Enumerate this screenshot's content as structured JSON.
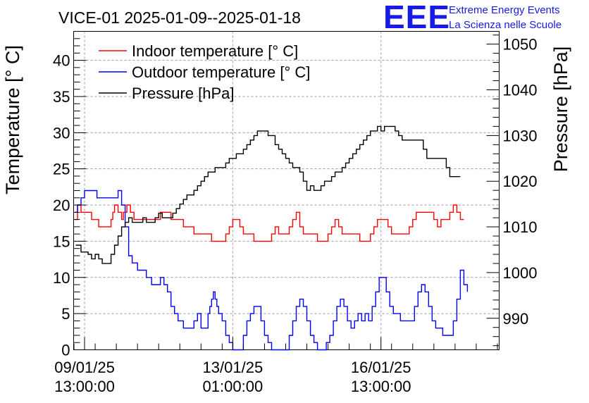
{
  "chart_data": {
    "type": "line",
    "title": "VICE-01 2025-01-09--2025-01-18",
    "ylabel_left": "Temperature [° C]",
    "ylabel_right": "Pressure [hPa]",
    "ylim_left": [
      0,
      44
    ],
    "ylim_right": [
      983.1,
      1052.8
    ],
    "x_range_hours": [
      -6.2,
      235
    ],
    "x_ticks": [
      {
        "hours": 0,
        "date": "09/01/25",
        "time": "13:00:00"
      },
      {
        "hours": 84,
        "date": "13/01/25",
        "time": "01:00:00"
      },
      {
        "hours": 168,
        "date": "16/01/25",
        "time": "13:00:00"
      }
    ],
    "y_ticks_left": [
      0,
      5,
      10,
      15,
      20,
      25,
      30,
      35,
      40
    ],
    "y_ticks_right": [
      990,
      1000,
      1010,
      1020,
      1030,
      1040,
      1050
    ],
    "legend": [
      {
        "label": "Indoor temperature [° C]",
        "color": "#ff0000"
      },
      {
        "label": "Outdoor temperature [° C]",
        "color": "#0000ff"
      },
      {
        "label": "Pressure [hPa]",
        "color": "#000000"
      }
    ],
    "series": [
      {
        "name": "Indoor temperature [° C]",
        "axis": "left",
        "color": "#ff0000",
        "points": [
          [
            -5.5,
            18
          ],
          [
            -4,
            20
          ],
          [
            -2,
            19
          ],
          [
            2,
            19
          ],
          [
            4,
            18
          ],
          [
            7,
            18
          ],
          [
            8,
            17
          ],
          [
            14,
            17
          ],
          [
            15,
            18
          ],
          [
            16,
            19
          ],
          [
            17,
            20
          ],
          [
            19,
            19
          ],
          [
            21,
            18
          ],
          [
            22,
            19
          ],
          [
            24,
            20
          ],
          [
            26,
            19
          ],
          [
            28,
            18
          ],
          [
            42,
            18
          ],
          [
            43,
            19
          ],
          [
            47,
            19
          ],
          [
            49,
            18
          ],
          [
            54,
            18
          ],
          [
            56,
            17
          ],
          [
            60,
            17
          ],
          [
            62,
            16
          ],
          [
            70,
            16
          ],
          [
            72,
            15
          ],
          [
            78,
            15
          ],
          [
            80,
            16
          ],
          [
            82,
            17
          ],
          [
            84,
            18
          ],
          [
            88,
            17
          ],
          [
            90,
            16
          ],
          [
            94,
            16
          ],
          [
            96,
            15
          ],
          [
            104,
            15
          ],
          [
            106,
            16
          ],
          [
            108,
            17
          ],
          [
            110,
            16
          ],
          [
            114,
            16
          ],
          [
            116,
            17
          ],
          [
            118,
            18
          ],
          [
            120,
            19
          ],
          [
            122,
            17
          ],
          [
            124,
            16
          ],
          [
            130,
            16
          ],
          [
            132,
            15
          ],
          [
            136,
            15
          ],
          [
            138,
            16
          ],
          [
            140,
            17
          ],
          [
            142,
            18
          ],
          [
            144,
            17
          ],
          [
            146,
            16
          ],
          [
            154,
            16
          ],
          [
            156,
            15
          ],
          [
            160,
            15
          ],
          [
            162,
            16
          ],
          [
            164,
            17
          ],
          [
            166,
            18
          ],
          [
            170,
            18
          ],
          [
            172,
            17
          ],
          [
            174,
            16
          ],
          [
            182,
            16
          ],
          [
            184,
            17
          ],
          [
            186,
            18
          ],
          [
            188,
            19
          ],
          [
            196,
            19
          ],
          [
            198,
            18
          ],
          [
            200,
            17
          ],
          [
            202,
            18
          ],
          [
            205,
            18
          ],
          [
            207,
            19
          ],
          [
            209,
            20
          ],
          [
            211,
            19
          ],
          [
            213,
            18
          ],
          [
            215,
            18
          ]
        ]
      },
      {
        "name": "Outdoor temperature [° C]",
        "axis": "left",
        "color": "#0000ff",
        "points": [
          [
            -5.5,
            19
          ],
          [
            -4,
            20
          ],
          [
            -2,
            21
          ],
          [
            0,
            22
          ],
          [
            5,
            22
          ],
          [
            7,
            21
          ],
          [
            17,
            21
          ],
          [
            19,
            22
          ],
          [
            21,
            20
          ],
          [
            23,
            17
          ],
          [
            25,
            13
          ],
          [
            27,
            12
          ],
          [
            30,
            11
          ],
          [
            33,
            11
          ],
          [
            35,
            10
          ],
          [
            38,
            9
          ],
          [
            41,
            9
          ],
          [
            43,
            10
          ],
          [
            45,
            9
          ],
          [
            47,
            8
          ],
          [
            49,
            6
          ],
          [
            51,
            5
          ],
          [
            53,
            4
          ],
          [
            56,
            3
          ],
          [
            60,
            3
          ],
          [
            62,
            4
          ],
          [
            64,
            5
          ],
          [
            66,
            3
          ],
          [
            68,
            3
          ],
          [
            70,
            5
          ],
          [
            71,
            6
          ],
          [
            72,
            7
          ],
          [
            73,
            8
          ],
          [
            74,
            7
          ],
          [
            75,
            6
          ],
          [
            76,
            5
          ],
          [
            78,
            4
          ],
          [
            80,
            2
          ],
          [
            82,
            1
          ],
          [
            84,
            0
          ],
          [
            88,
            0
          ],
          [
            90,
            2
          ],
          [
            92,
            4
          ],
          [
            94,
            5
          ],
          [
            96,
            6
          ],
          [
            98,
            6
          ],
          [
            100,
            4
          ],
          [
            102,
            2
          ],
          [
            104,
            1
          ],
          [
            106,
            0
          ],
          [
            114,
            0
          ],
          [
            116,
            2
          ],
          [
            118,
            4
          ],
          [
            120,
            6
          ],
          [
            122,
            7
          ],
          [
            124,
            6
          ],
          [
            126,
            4
          ],
          [
            128,
            2
          ],
          [
            130,
            1
          ],
          [
            132,
            0
          ],
          [
            135,
            0
          ],
          [
            137,
            1
          ],
          [
            139,
            2
          ],
          [
            141,
            4
          ],
          [
            143,
            6
          ],
          [
            145,
            7
          ],
          [
            147,
            6
          ],
          [
            149,
            4
          ],
          [
            151,
            3
          ],
          [
            153,
            4
          ],
          [
            155,
            5
          ],
          [
            157,
            4
          ],
          [
            159,
            5
          ],
          [
            161,
            4
          ],
          [
            163,
            6
          ],
          [
            165,
            8
          ],
          [
            167,
            10
          ],
          [
            169,
            10
          ],
          [
            171,
            8
          ],
          [
            173,
            6
          ],
          [
            175,
            5
          ],
          [
            177,
            5
          ],
          [
            179,
            4
          ],
          [
            185,
            4
          ],
          [
            187,
            6
          ],
          [
            189,
            8
          ],
          [
            191,
            9
          ],
          [
            193,
            8
          ],
          [
            195,
            6
          ],
          [
            197,
            4
          ],
          [
            199,
            3
          ],
          [
            201,
            3
          ],
          [
            203,
            2
          ],
          [
            207,
            2
          ],
          [
            209,
            4
          ],
          [
            211,
            7
          ],
          [
            213,
            11
          ],
          [
            215,
            9
          ],
          [
            217,
            8
          ]
        ]
      },
      {
        "name": "Pressure [hPa]",
        "axis": "right",
        "color": "#000000",
        "points": [
          [
            -5,
            1006
          ],
          [
            -2,
            1004.5
          ],
          [
            2,
            1004
          ],
          [
            4,
            1003
          ],
          [
            6,
            1004
          ],
          [
            8,
            1003
          ],
          [
            10,
            1002
          ],
          [
            13,
            1002
          ],
          [
            15,
            1004
          ],
          [
            17,
            1006
          ],
          [
            19,
            1008
          ],
          [
            21,
            1010
          ],
          [
            23,
            1011
          ],
          [
            25,
            1012
          ],
          [
            27,
            1011
          ],
          [
            33,
            1012
          ],
          [
            35,
            1011
          ],
          [
            40,
            1012
          ],
          [
            42,
            1013
          ],
          [
            44,
            1012
          ],
          [
            48,
            1012
          ],
          [
            50,
            1013
          ],
          [
            52,
            1014
          ],
          [
            54,
            1015
          ],
          [
            56,
            1016
          ],
          [
            58,
            1017
          ],
          [
            60,
            1017
          ],
          [
            62,
            1018
          ],
          [
            64,
            1019
          ],
          [
            66,
            1020
          ],
          [
            68,
            1021
          ],
          [
            70,
            1022
          ],
          [
            72,
            1022
          ],
          [
            74,
            1023
          ],
          [
            78,
            1023
          ],
          [
            80,
            1024
          ],
          [
            82,
            1025
          ],
          [
            84,
            1025
          ],
          [
            86,
            1026
          ],
          [
            88,
            1026
          ],
          [
            90,
            1027
          ],
          [
            92,
            1028
          ],
          [
            94,
            1029
          ],
          [
            96,
            1030
          ],
          [
            98,
            1031
          ],
          [
            102,
            1031
          ],
          [
            104,
            1030
          ],
          [
            106,
            1030
          ],
          [
            108,
            1028
          ],
          [
            110,
            1027
          ],
          [
            112,
            1026
          ],
          [
            114,
            1025
          ],
          [
            116,
            1024
          ],
          [
            118,
            1023
          ],
          [
            120,
            1023
          ],
          [
            122,
            1022
          ],
          [
            124,
            1020
          ],
          [
            126,
            1018
          ],
          [
            128,
            1019
          ],
          [
            130,
            1018
          ],
          [
            132,
            1018
          ],
          [
            134,
            1019
          ],
          [
            136,
            1020
          ],
          [
            138,
            1020
          ],
          [
            140,
            1021
          ],
          [
            142,
            1022
          ],
          [
            144,
            1022
          ],
          [
            146,
            1023
          ],
          [
            148,
            1024
          ],
          [
            150,
            1025
          ],
          [
            152,
            1026
          ],
          [
            154,
            1027
          ],
          [
            156,
            1028
          ],
          [
            158,
            1029
          ],
          [
            160,
            1030
          ],
          [
            162,
            1031
          ],
          [
            164,
            1031
          ],
          [
            166,
            1032
          ],
          [
            168,
            1031
          ],
          [
            170,
            1032
          ],
          [
            174,
            1032
          ],
          [
            176,
            1031
          ],
          [
            178,
            1030
          ],
          [
            180,
            1029
          ],
          [
            190,
            1029
          ],
          [
            192,
            1027
          ],
          [
            194,
            1025
          ],
          [
            203,
            1025
          ],
          [
            205,
            1023
          ],
          [
            207,
            1021
          ],
          [
            213,
            1021
          ]
        ]
      }
    ]
  },
  "logo": {
    "letters": "EEE",
    "line1": "Extreme Energy Events",
    "line2": "La Scienza nelle Scuole"
  }
}
